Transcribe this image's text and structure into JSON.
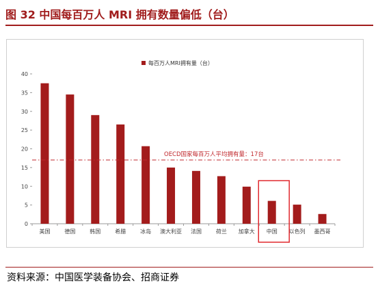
{
  "figure": {
    "title": "图 32 中国每百万人 MRI 拥有数量偏低（台）",
    "source": "资料来源：中国医学装备协会、招商证券"
  },
  "chart_data": {
    "type": "bar",
    "categories": [
      "美国",
      "德国",
      "韩国",
      "希腊",
      "冰岛",
      "澳大利亚",
      "法国",
      "荷兰",
      "加拿大",
      "中国",
      "以色列",
      "墨西哥"
    ],
    "series": [
      {
        "name": "每百万人MRI拥有量（台）",
        "values": [
          37.5,
          34.5,
          29.0,
          26.5,
          20.7,
          15.0,
          14.1,
          12.7,
          9.9,
          6.1,
          5.1,
          2.6
        ]
      }
    ],
    "ylim": [
      0,
      40
    ],
    "yticks": [
      0,
      5,
      10,
      15,
      20,
      25,
      30,
      35,
      40
    ],
    "grid": false,
    "legend": "top-center",
    "bar_color": "#a31c1c",
    "reference_line": {
      "value": 17,
      "label": "OECD国家每百万人平均拥有量：17台",
      "color": "#c0282d"
    },
    "highlight": {
      "category": "中国",
      "color": "#e0282e"
    }
  }
}
